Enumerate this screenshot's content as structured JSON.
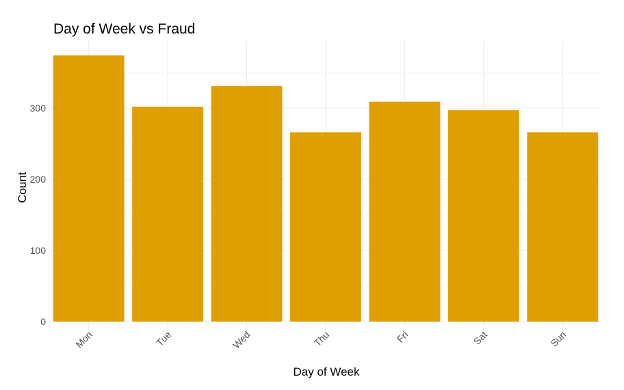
{
  "chart_data": {
    "type": "bar",
    "title": "Day of Week vs Fraud",
    "xlabel": "Day of Week",
    "ylabel": "Count",
    "categories": [
      "Mon",
      "Tue",
      "Wed",
      "Thu",
      "Fri",
      "Sat",
      "Sun"
    ],
    "values": [
      374,
      302,
      331,
      266,
      309,
      297,
      266
    ],
    "ylim": [
      0,
      392
    ],
    "yticks": [
      0,
      100,
      200,
      300
    ],
    "grid": true,
    "legend": "none",
    "bar_color": "#E09F00"
  }
}
